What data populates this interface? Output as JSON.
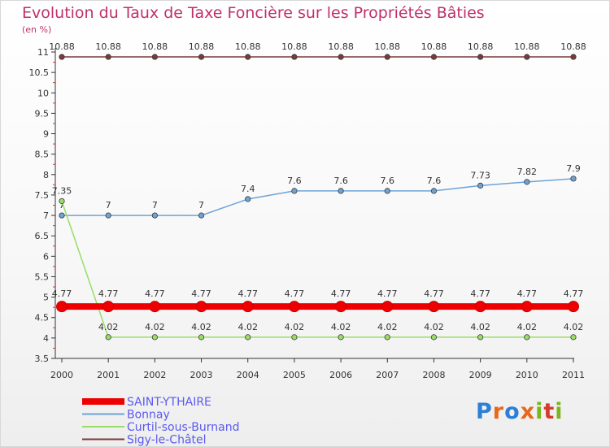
{
  "title": "Evolution du Taux de Taxe Foncière sur les Propriétés Bâties",
  "unit_label": "(en %)",
  "logo": {
    "letters": [
      "P",
      "r",
      "o",
      "x",
      "i",
      "t",
      "i"
    ],
    "colors": [
      "#2b7fd6",
      "#e8681a",
      "#2b7fd6",
      "#e8681a",
      "#79b61b",
      "#d63a2b",
      "#79b61b"
    ]
  },
  "chart_data": {
    "type": "line",
    "title": "Evolution du Taux de Taxe Foncière sur les Propriétés Bâties",
    "ylabel": "(en %)",
    "xlabel": "",
    "x": [
      "2000",
      "2001",
      "2002",
      "2003",
      "2004",
      "2005",
      "2006",
      "2007",
      "2008",
      "2009",
      "2010",
      "2011"
    ],
    "ylim": [
      3.5,
      11
    ],
    "yticks": [
      "3.5",
      "4",
      "4.5",
      "5",
      "5.5",
      "6",
      "6.5",
      "7",
      "7.5",
      "8",
      "8.5",
      "9",
      "9.5",
      "10",
      "10.5",
      "11"
    ],
    "grid": false,
    "legend": "bottom-left",
    "series": [
      {
        "name": "SAINT-YTHAIRE",
        "color": "#ee0000",
        "values": [
          4.77,
          4.77,
          4.77,
          4.77,
          4.77,
          4.77,
          4.77,
          4.77,
          4.77,
          4.77,
          4.77,
          4.77
        ],
        "labels": [
          "4.77",
          "4.77",
          "4.77",
          "4.77",
          "4.77",
          "4.77",
          "4.77",
          "4.77",
          "4.77",
          "4.77",
          "4.77",
          "4.77"
        ]
      },
      {
        "name": "Bonnay",
        "color": "#6ea3d6",
        "values": [
          7,
          7,
          7,
          7,
          7.4,
          7.6,
          7.6,
          7.6,
          7.6,
          7.73,
          7.82,
          7.9
        ],
        "labels": [
          "7",
          "7",
          "7",
          "7",
          "7.4",
          "7.6",
          "7.6",
          "7.6",
          "7.6",
          "7.73",
          "7.82",
          "7.9"
        ]
      },
      {
        "name": "Curtil-sous-Burnand",
        "color": "#99dd66",
        "values": [
          7.35,
          4.02,
          4.02,
          4.02,
          4.02,
          4.02,
          4.02,
          4.02,
          4.02,
          4.02,
          4.02,
          4.02
        ],
        "labels": [
          "7.35",
          "4.02",
          "4.02",
          "4.02",
          "4.02",
          "4.02",
          "4.02",
          "4.02",
          "4.02",
          "4.02",
          "4.02",
          "4.02"
        ]
      },
      {
        "name": "Sigy-le-Châtel",
        "color": "#7a3a3a",
        "values": [
          10.88,
          10.88,
          10.88,
          10.88,
          10.88,
          10.88,
          10.88,
          10.88,
          10.88,
          10.88,
          10.88,
          10.88
        ],
        "labels": [
          "10.88",
          "10.88",
          "10.88",
          "10.88",
          "10.88",
          "10.88",
          "10.88",
          "10.88",
          "10.88",
          "10.88",
          "10.88",
          "10.88"
        ]
      }
    ]
  }
}
